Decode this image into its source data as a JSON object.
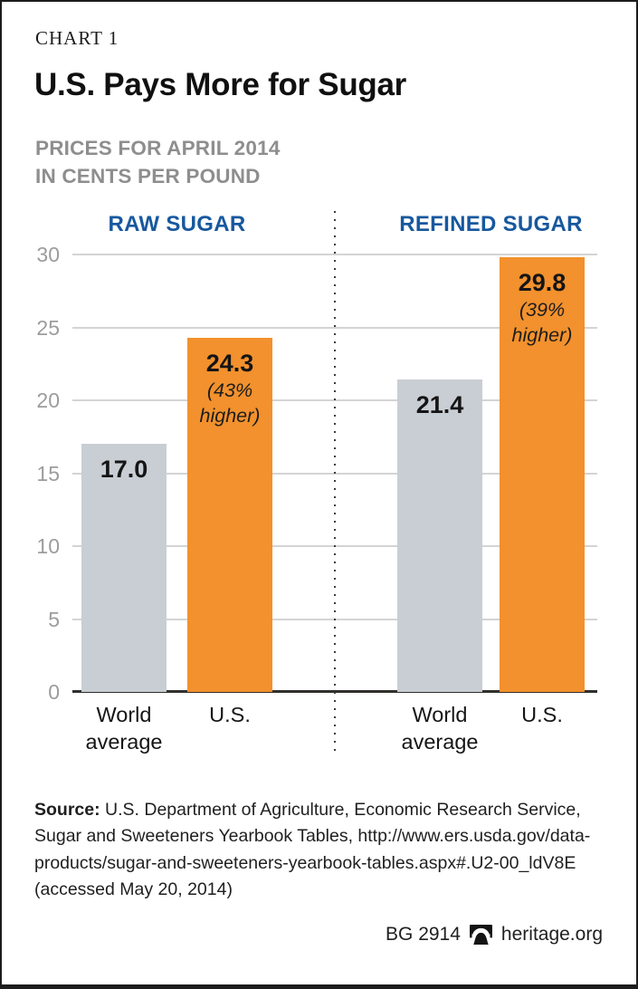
{
  "page": {
    "kicker": "CHART 1",
    "title": "U.S. Pays More for Sugar",
    "subtitle_line1": "PRICES FOR APRIL 2014",
    "subtitle_line2": "IN CENTS PER POUND"
  },
  "source": {
    "prefix": "Source:",
    "text": " U.S. Department of Agriculture, Economic Research Service, Sugar and Sweeteners Yearbook Tables, http://www.ers.usda.gov/data-products/sugar-and-sweeteners-yearbook-tables.aspx#.U2-00_ldV8E (accessed May 20, 2014)"
  },
  "footer": {
    "doc_id": "BG 2914",
    "site": "heritage.org",
    "logo_icon": "heritage-bell-icon"
  },
  "colors": {
    "accent_orange": "#F2912D",
    "bar_gray": "#C9CED4",
    "header_blue": "#17589E",
    "grid_gray": "#D4D4D4",
    "tick_gray": "#9C9C9C"
  },
  "chart_data": {
    "type": "bar",
    "title": "U.S. Pays More for Sugar",
    "subtitle": "PRICES FOR APRIL 2014 IN CENTS PER POUND",
    "unit": "cents per pound",
    "ylim": [
      0,
      30
    ],
    "yticks": [
      0,
      5,
      10,
      15,
      20,
      25,
      30
    ],
    "grid": "horizontal",
    "legend_position": "none",
    "groups": [
      {
        "label": "RAW SUGAR",
        "bars": [
          {
            "category": "World\naverage",
            "value": 17.0,
            "value_label": "17.0",
            "color": "gray"
          },
          {
            "category": "U.S.",
            "value": 24.3,
            "value_label": "24.3",
            "note": "(43%\nhigher)",
            "color": "orange"
          }
        ]
      },
      {
        "label": "REFINED SUGAR",
        "bars": [
          {
            "category": "World\naverage",
            "value": 21.4,
            "value_label": "21.4",
            "color": "gray"
          },
          {
            "category": "U.S.",
            "value": 29.8,
            "value_label": "29.8",
            "note": "(39%\nhigher)",
            "color": "orange"
          }
        ]
      }
    ]
  }
}
